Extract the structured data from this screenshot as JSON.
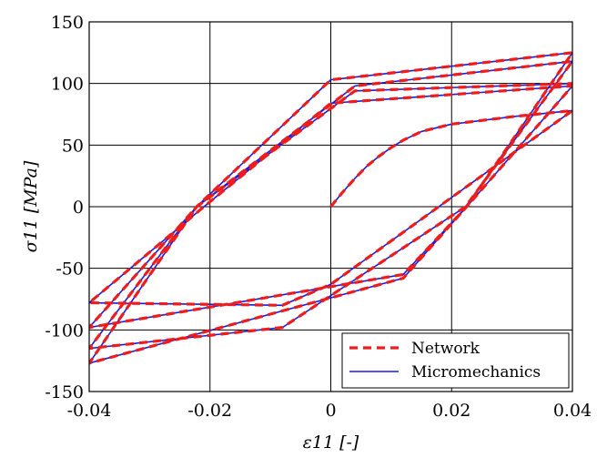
{
  "chart_data": {
    "type": "line",
    "title": "",
    "xlabel": "ε11 [-]",
    "ylabel": "σ11 [MPa]",
    "xlim": [
      -0.04,
      0.04
    ],
    "ylim": [
      -150,
      150
    ],
    "grid": true,
    "x_ticks": [
      -0.04,
      -0.02,
      0,
      0.02,
      0.04
    ],
    "x_tick_labels": [
      "-0.04",
      "-0.02",
      "0",
      "0.02",
      "0.04"
    ],
    "y_ticks": [
      -150,
      -100,
      -50,
      0,
      50,
      100,
      150
    ],
    "y_tick_labels": [
      "-150",
      "-100",
      "-50",
      "0",
      "50",
      "100",
      "150"
    ],
    "legend_position": "bottom-right",
    "series": [
      {
        "name": "Network",
        "color": "#ee1c1c",
        "style": "dashed",
        "x": [
          0,
          0.002,
          0.004,
          0.006,
          0.008,
          0.01,
          0.012,
          0.015,
          0.02,
          0.03,
          0.04,
          0.0,
          -0.008,
          -0.04,
          -0.021,
          0.0,
          0.04,
          0.0225,
          0.012,
          -0.04,
          -0.0222,
          0.004,
          0.04,
          0.0223,
          -0.008,
          -0.04,
          -0.0222,
          0.0,
          0.04,
          0.0225,
          0.012,
          -0.04,
          -0.0222,
          0.004,
          0.04
        ],
        "y": [
          0,
          12,
          23,
          33,
          41,
          48,
          54,
          61,
          67,
          73,
          78,
          -63,
          -80,
          -78,
          0,
          84,
          98,
          0,
          -55,
          -98,
          0,
          98,
          118,
          0,
          -98,
          -115,
          0,
          103,
          125,
          0,
          -58,
          -127,
          0,
          94,
          100
        ]
      },
      {
        "name": "Micromechanics",
        "color": "#1a1adc",
        "style": "solid",
        "x": [
          0,
          0.002,
          0.004,
          0.006,
          0.008,
          0.01,
          0.012,
          0.015,
          0.02,
          0.03,
          0.04,
          0.0,
          -0.008,
          -0.04,
          -0.021,
          0.0,
          0.04,
          0.0225,
          0.012,
          -0.04,
          -0.0222,
          0.004,
          0.04,
          0.0223,
          -0.008,
          -0.04,
          -0.0222,
          0.0,
          0.04,
          0.0225,
          0.012,
          -0.04,
          -0.0222,
          0.004,
          0.04
        ],
        "y": [
          0,
          12,
          23,
          33,
          41,
          48,
          54,
          61,
          67,
          73,
          78,
          -63,
          -80,
          -78,
          0,
          84,
          98,
          0,
          -55,
          -98,
          0,
          98,
          118,
          0,
          -98,
          -115,
          0,
          103,
          125,
          0,
          -58,
          -127,
          0,
          94,
          100
        ]
      }
    ]
  }
}
